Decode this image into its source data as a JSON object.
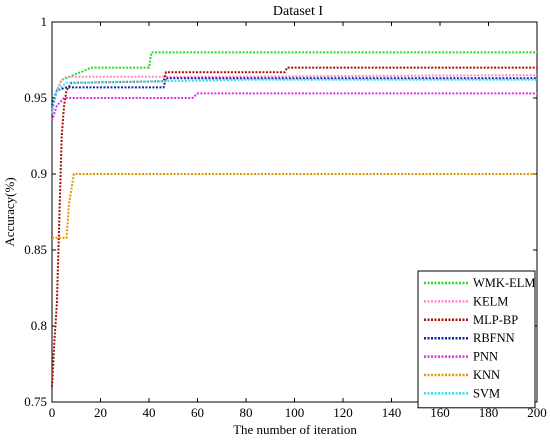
{
  "chart_data": {
    "type": "line",
    "title": "Dataset I",
    "xlabel": "The number of iteration",
    "ylabel": "Accuracy(%)",
    "xlim": [
      0,
      200
    ],
    "ylim": [
      0.75,
      1.0
    ],
    "xticks": [
      "0",
      "20",
      "40",
      "60",
      "80",
      "100",
      "120",
      "140",
      "160",
      "180",
      "200"
    ],
    "yticks": [
      "0.75",
      "0.8",
      "0.85",
      "0.9",
      "0.95",
      "1"
    ],
    "grid": false,
    "legend_position": "bottom-right",
    "series": [
      {
        "name": "WMK-ELM",
        "color": "#22dd22",
        "points": [
          [
            0,
            0.945
          ],
          [
            2,
            0.955
          ],
          [
            4,
            0.962
          ],
          [
            6,
            0.963
          ],
          [
            10,
            0.966
          ],
          [
            12,
            0.967
          ],
          [
            16,
            0.97
          ],
          [
            40,
            0.97
          ],
          [
            41,
            0.98
          ],
          [
            200,
            0.98
          ]
        ]
      },
      {
        "name": "KELM",
        "color": "#ff88cc",
        "points": [
          [
            0,
            0.94
          ],
          [
            2,
            0.955
          ],
          [
            4,
            0.962
          ],
          [
            6,
            0.964
          ],
          [
            60,
            0.964
          ],
          [
            200,
            0.965
          ]
        ]
      },
      {
        "name": "MLP-BP",
        "color": "#aa1100",
        "points": [
          [
            0,
            0.76
          ],
          [
            1,
            0.79
          ],
          [
            2,
            0.815
          ],
          [
            3,
            0.87
          ],
          [
            4,
            0.925
          ],
          [
            5,
            0.945
          ],
          [
            6,
            0.955
          ],
          [
            8,
            0.96
          ],
          [
            46,
            0.961
          ],
          [
            47,
            0.967
          ],
          [
            96,
            0.967
          ],
          [
            97,
            0.97
          ],
          [
            200,
            0.97
          ]
        ]
      },
      {
        "name": "RBFNN",
        "color": "#1122aa",
        "points": [
          [
            0,
            0.945
          ],
          [
            2,
            0.955
          ],
          [
            6,
            0.957
          ],
          [
            46,
            0.957
          ],
          [
            47,
            0.963
          ],
          [
            200,
            0.963
          ]
        ]
      },
      {
        "name": "PNN",
        "color": "#dd33dd",
        "points": [
          [
            0,
            0.935
          ],
          [
            2,
            0.945
          ],
          [
            5,
            0.95
          ],
          [
            58,
            0.95
          ],
          [
            60,
            0.953
          ],
          [
            200,
            0.953
          ]
        ]
      },
      {
        "name": "KNN",
        "color": "#dd9900",
        "points": [
          [
            0,
            0.858
          ],
          [
            6,
            0.858
          ],
          [
            7,
            0.88
          ],
          [
            9,
            0.9
          ],
          [
            200,
            0.9
          ]
        ]
      },
      {
        "name": "SVM",
        "color": "#33ddee",
        "points": [
          [
            0,
            0.94
          ],
          [
            2,
            0.955
          ],
          [
            6,
            0.96
          ],
          [
            80,
            0.962
          ],
          [
            200,
            0.962
          ]
        ]
      }
    ]
  }
}
